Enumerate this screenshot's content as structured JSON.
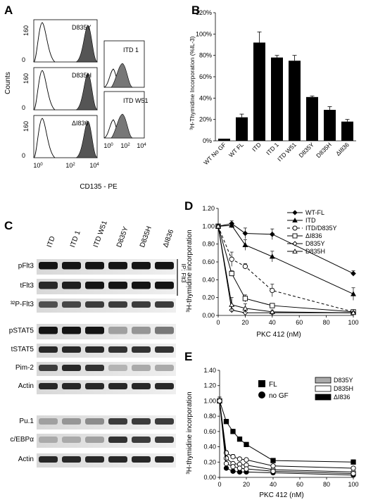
{
  "panels": {
    "A": {
      "label": "A",
      "ylabel": "Counts",
      "xlabel": "CD135 - PE",
      "yticks": [
        "0",
        "160"
      ],
      "xticks_exp": [
        "0",
        "2",
        "4"
      ],
      "left_mutants": [
        "D835Y",
        "D835H",
        "ΔI836"
      ],
      "right_mutants": [
        "ITD 1",
        "ITD W51"
      ],
      "xticks_right": [
        "0",
        "2",
        "4"
      ]
    },
    "B": {
      "label": "B",
      "ylabel": "³H-Thymidine Incorporation (%IL-3)",
      "yticks": [
        "0%",
        "20%",
        "40%",
        "60%",
        "80%",
        "100%",
        "120%"
      ]
    },
    "C": {
      "label": "C",
      "lanes": [
        "ITD",
        "ITD 1",
        "ITD W51",
        "D835Y",
        "D835H",
        "ΔI836"
      ],
      "blots": [
        "pFlt3",
        "tFlt3",
        "³²P-Flt3",
        "pSTAT5",
        "tSTAT5",
        "Pim-2",
        "Actin",
        "Pu.1",
        "c/EBPα",
        "Actin"
      ],
      "ip_label": "IP: Flt3"
    },
    "D": {
      "label": "D",
      "ylabel": "³H-thymidine incorporation",
      "xlabel": "PKC 412 (nM)",
      "yticks": [
        "0.00",
        "0.20",
        "0.40",
        "0.60",
        "0.80",
        "1.00",
        "1.20"
      ],
      "xticks": [
        "0",
        "20",
        "40",
        "60",
        "80",
        "100"
      ]
    },
    "E": {
      "label": "E",
      "ylabel": "³H-thymidine incorporation",
      "xlabel": "PKC 412 (nM)",
      "yticks": [
        "0.00",
        "0.20",
        "0.40",
        "0.60",
        "0.80",
        "1.00",
        "1.20",
        "1.40"
      ],
      "xticks": [
        "0",
        "20",
        "40",
        "60",
        "80",
        "100"
      ],
      "legend_left": [
        "FL",
        "no GF"
      ],
      "legend_right": [
        "D835Y",
        "D835H",
        "ΔI836"
      ]
    }
  },
  "chart_data": [
    {
      "type": "bar",
      "panel": "B",
      "categories": [
        "WT No GF",
        "WT FL",
        "ITD",
        "ITD 1",
        "ITD W51",
        "D835Y",
        "D835H",
        "ΔI836"
      ],
      "values": [
        2,
        22,
        92,
        78,
        75,
        41,
        29,
        18
      ],
      "errors": [
        0,
        3,
        10,
        2,
        5,
        1,
        3,
        2
      ],
      "ylabel": "³H-Thymidine Incorporation (%IL-3)",
      "ylim": [
        0,
        120
      ]
    },
    {
      "type": "line",
      "panel": "D",
      "x": [
        0,
        10,
        20,
        40,
        100
      ],
      "series": [
        {
          "name": "WT-FL",
          "values": [
            1.0,
            1.03,
            0.92,
            0.91,
            0.47
          ],
          "errors": [
            0.02,
            0.03,
            0.06,
            0.06,
            0.03
          ],
          "marker": "diamond-filled",
          "dash": false
        },
        {
          "name": "ITD",
          "values": [
            1.0,
            1.01,
            0.79,
            0.66,
            0.24
          ],
          "errors": [
            0.02,
            0.03,
            0.06,
            0.06,
            0.07
          ],
          "marker": "triangle-filled",
          "dash": false
        },
        {
          "name": "ITD/D835Y",
          "values": [
            1.0,
            0.63,
            0.55,
            0.28,
            0.04
          ],
          "errors": [
            0.02,
            0.08,
            0.03,
            0.07,
            0.02
          ],
          "marker": "circle-open",
          "dash": true
        },
        {
          "name": "ΔI836",
          "values": [
            1.0,
            0.47,
            0.19,
            0.11,
            0.04
          ],
          "errors": [
            0.02,
            0.03,
            0.04,
            0.02,
            0.01
          ],
          "marker": "square-open",
          "dash": false
        },
        {
          "name": "D835Y",
          "values": [
            1.0,
            0.06,
            0.03,
            0.03,
            0.03
          ],
          "errors": [
            0.02,
            0.01,
            0.01,
            0.01,
            0.01
          ],
          "marker": "diamond-open",
          "dash": false
        },
        {
          "name": "D835H",
          "values": [
            1.0,
            0.12,
            0.08,
            0.04,
            0.03
          ],
          "errors": [
            0.02,
            0.08,
            0.05,
            0.02,
            0.01
          ],
          "marker": "triangle-open",
          "dash": false
        }
      ],
      "xlabel": "PKC 412 (nM)",
      "ylabel": "³H-thymidine incorporation",
      "ylim": [
        0,
        1.2
      ],
      "xlim": [
        0,
        100
      ]
    },
    {
      "type": "line",
      "panel": "E",
      "x": [
        0,
        5,
        10,
        15,
        20,
        40,
        100
      ],
      "series": [
        {
          "name": "FL",
          "values": [
            1.0,
            0.73,
            0.6,
            0.5,
            0.43,
            0.22,
            0.2
          ],
          "errors": [
            0.05,
            0.03,
            0.03,
            0.03,
            0.02,
            0.02,
            0.03
          ],
          "marker": "square-filled",
          "dash": false
        },
        {
          "name": "no GF",
          "values": [
            1.0,
            0.12,
            0.08,
            0.07,
            0.07,
            0.06,
            0.03
          ],
          "errors": [
            0.05,
            0.02,
            0.02,
            0.01,
            0.01,
            0.01,
            0.01
          ],
          "marker": "circle-filled",
          "dash": false
        },
        {
          "name": "D835Y",
          "values": [
            1.0,
            0.25,
            0.18,
            0.17,
            0.16,
            0.1,
            0.07
          ],
          "errors": [
            0.05,
            0.03,
            0.02,
            0.02,
            0.02,
            0.01,
            0.01
          ],
          "marker": "circle-open",
          "dash": false
        },
        {
          "name": "D835H",
          "values": [
            1.0,
            0.32,
            0.27,
            0.24,
            0.23,
            0.15,
            0.12
          ],
          "errors": [
            0.05,
            0.03,
            0.03,
            0.02,
            0.02,
            0.02,
            0.02
          ],
          "marker": "circle-open",
          "dash": false
        },
        {
          "name": "ΔI836",
          "values": [
            1.0,
            0.18,
            0.14,
            0.12,
            0.11,
            0.08,
            0.05
          ],
          "errors": [
            0.05,
            0.02,
            0.02,
            0.01,
            0.01,
            0.01,
            0.01
          ],
          "marker": "circle-open",
          "dash": false
        }
      ],
      "xlabel": "PKC 412 (nM)",
      "ylabel": "³H-thymidine incorporation",
      "ylim": [
        0,
        1.4
      ],
      "xlim": [
        0,
        100
      ]
    }
  ]
}
